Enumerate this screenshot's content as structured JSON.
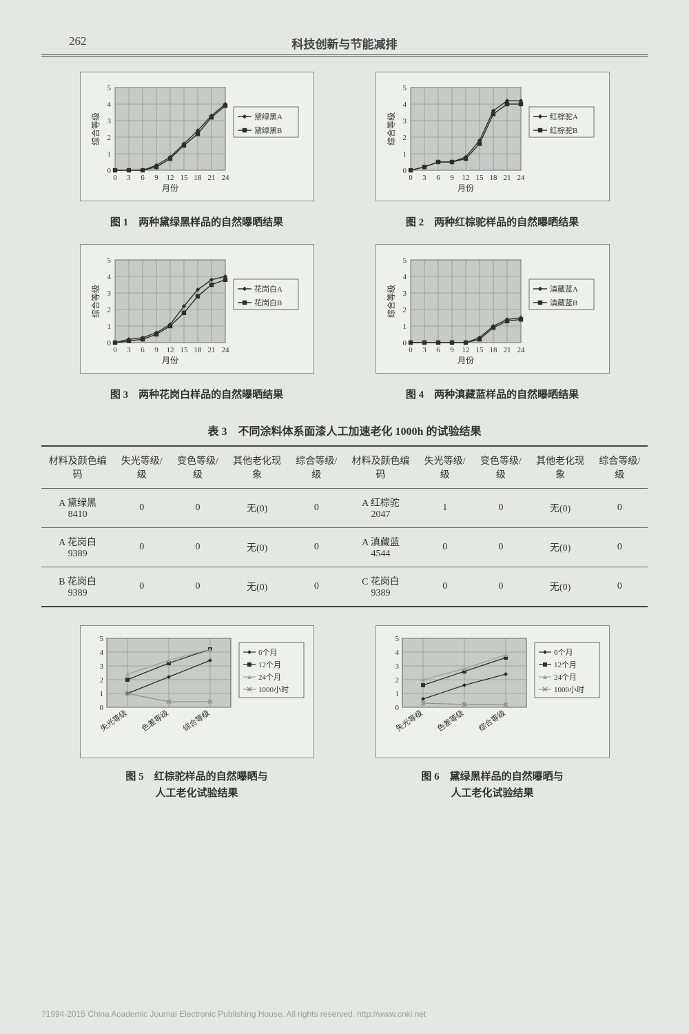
{
  "page_number": "262",
  "header_title": "科技创新与节能减排",
  "axis": {
    "x_ticks": [
      0,
      3,
      6,
      9,
      12,
      15,
      18,
      21,
      24
    ],
    "x_label": "月份",
    "y_ticks": [
      0,
      1,
      2,
      3,
      4,
      5
    ],
    "y_label": "综合等级",
    "plot_bg": "#c6cbc7",
    "plot_border": "#5a5a5a",
    "grid_color": "#7e827e",
    "font_size": 11
  },
  "legend_box": {
    "border": "#6b6b6b",
    "bg": "#eef0ed"
  },
  "series_style": {
    "A": {
      "color": "#2d2f2d",
      "marker": "diamond"
    },
    "B": {
      "color": "#2d2f2d",
      "marker": "square"
    }
  },
  "charts_top": [
    {
      "caption": "图 1　两种黛绿黑样品的自然曝晒结果",
      "legend": [
        "黛绿黑A",
        "黛绿黑B"
      ],
      "seriesA": {
        "x": [
          0,
          3,
          6,
          9,
          12,
          15,
          18,
          21,
          24
        ],
        "y": [
          0,
          0,
          0,
          0.3,
          0.8,
          1.6,
          2.4,
          3.3,
          4
        ]
      },
      "seriesB": {
        "x": [
          0,
          3,
          6,
          9,
          12,
          15,
          18,
          21,
          24
        ],
        "y": [
          0,
          0,
          0,
          0.2,
          0.7,
          1.5,
          2.2,
          3.2,
          3.9
        ]
      }
    },
    {
      "caption": "图 2　两种红棕驼样品的自然曝晒结果",
      "legend": [
        "红棕驼A",
        "红棕驼B"
      ],
      "seriesA": {
        "x": [
          0,
          3,
          6,
          9,
          12,
          15,
          18,
          21,
          24
        ],
        "y": [
          0,
          0.2,
          0.5,
          0.5,
          0.8,
          1.8,
          3.6,
          4.2,
          4.2
        ]
      },
      "seriesB": {
        "x": [
          0,
          3,
          6,
          9,
          12,
          15,
          18,
          21,
          24
        ],
        "y": [
          0,
          0.2,
          0.5,
          0.5,
          0.7,
          1.6,
          3.4,
          4.0,
          4.0
        ]
      }
    },
    {
      "caption": "图 3　两种花岗白样品的自然曝晒结果",
      "legend": [
        "花岗白A",
        "花岗白B"
      ],
      "seriesA": {
        "x": [
          0,
          3,
          6,
          9,
          12,
          15,
          18,
          21,
          24
        ],
        "y": [
          0,
          0.2,
          0.3,
          0.6,
          1.1,
          2.2,
          3.2,
          3.8,
          4.0
        ]
      },
      "seriesB": {
        "x": [
          0,
          3,
          6,
          9,
          12,
          15,
          18,
          21,
          24
        ],
        "y": [
          0,
          0.1,
          0.2,
          0.5,
          1.0,
          1.8,
          2.8,
          3.5,
          3.8
        ]
      }
    },
    {
      "caption": "图 4　两种滇藏蓝样品的自然曝晒结果",
      "legend": [
        "滇藏蓝A",
        "滇藏蓝B"
      ],
      "seriesA": {
        "x": [
          0,
          3,
          6,
          9,
          12,
          15,
          18,
          21,
          24
        ],
        "y": [
          0,
          0,
          0,
          0,
          0,
          0.3,
          1.0,
          1.4,
          1.5
        ]
      },
      "seriesB": {
        "x": [
          0,
          3,
          6,
          9,
          12,
          15,
          18,
          21,
          24
        ],
        "y": [
          0,
          0,
          0,
          0,
          0,
          0.2,
          0.9,
          1.3,
          1.4
        ]
      }
    }
  ],
  "table": {
    "title": "表 3　不同涂料体系面漆人工加速老化 1000h 的试验结果",
    "columns": [
      "材料及颜色编码",
      "失光等级/级",
      "变色等级/级",
      "其他老化现象",
      "综合等级/级",
      "材料及颜色编码",
      "失光等级/级",
      "变色等级/级",
      "其他老化现象",
      "综合等级/级"
    ],
    "rows": [
      [
        "A 黛绿黑\n8410",
        "0",
        "0",
        "无(0)",
        "0",
        "A 红棕驼\n2047",
        "1",
        "0",
        "无(0)",
        "0"
      ],
      [
        "A 花岗白\n9389",
        "0",
        "0",
        "无(0)",
        "0",
        "A 滇藏蓝\n4544",
        "0",
        "0",
        "无(0)",
        "0"
      ],
      [
        "B 花岗白\n9389",
        "0",
        "0",
        "无(0)",
        "0",
        "C 花岗白\n9389",
        "0",
        "0",
        "无(0)",
        "0"
      ]
    ]
  },
  "axis2": {
    "categories": [
      "失光等级",
      "色差等级",
      "综合等级"
    ],
    "y_ticks": [
      0,
      1,
      2,
      3,
      4,
      5
    ]
  },
  "legend2": [
    "6个月",
    "12个月",
    "24个月",
    "1000小时"
  ],
  "series2_style": [
    {
      "color": "#2d2f2d",
      "marker": "diamond"
    },
    {
      "color": "#2d2f2d",
      "marker": "square"
    },
    {
      "color": "#9aa59a",
      "marker": "triangle"
    },
    {
      "color": "#8a908a",
      "marker": "x"
    }
  ],
  "charts_bottom": [
    {
      "caption_line1": "图 5　红棕驼样品的自然曝晒与",
      "caption_line2": "人工老化试验结果",
      "data": [
        [
          1.0,
          2.2,
          3.4
        ],
        [
          2.0,
          3.2,
          4.2
        ],
        [
          2.4,
          3.4,
          4.2
        ],
        [
          1.0,
          0.4,
          0.4
        ]
      ]
    },
    {
      "caption_line1": "图 6　黛绿黑样品的自然曝晒与",
      "caption_line2": "人工老化试验结果",
      "data": [
        [
          0.6,
          1.6,
          2.4
        ],
        [
          1.6,
          2.6,
          3.6
        ],
        [
          2.0,
          2.8,
          3.8
        ],
        [
          0.3,
          0.2,
          0.2
        ]
      ]
    }
  ],
  "footer": "?1994-2015 China Academic Journal Electronic Publishing House. All rights reserved.   http://www.cnki.net"
}
